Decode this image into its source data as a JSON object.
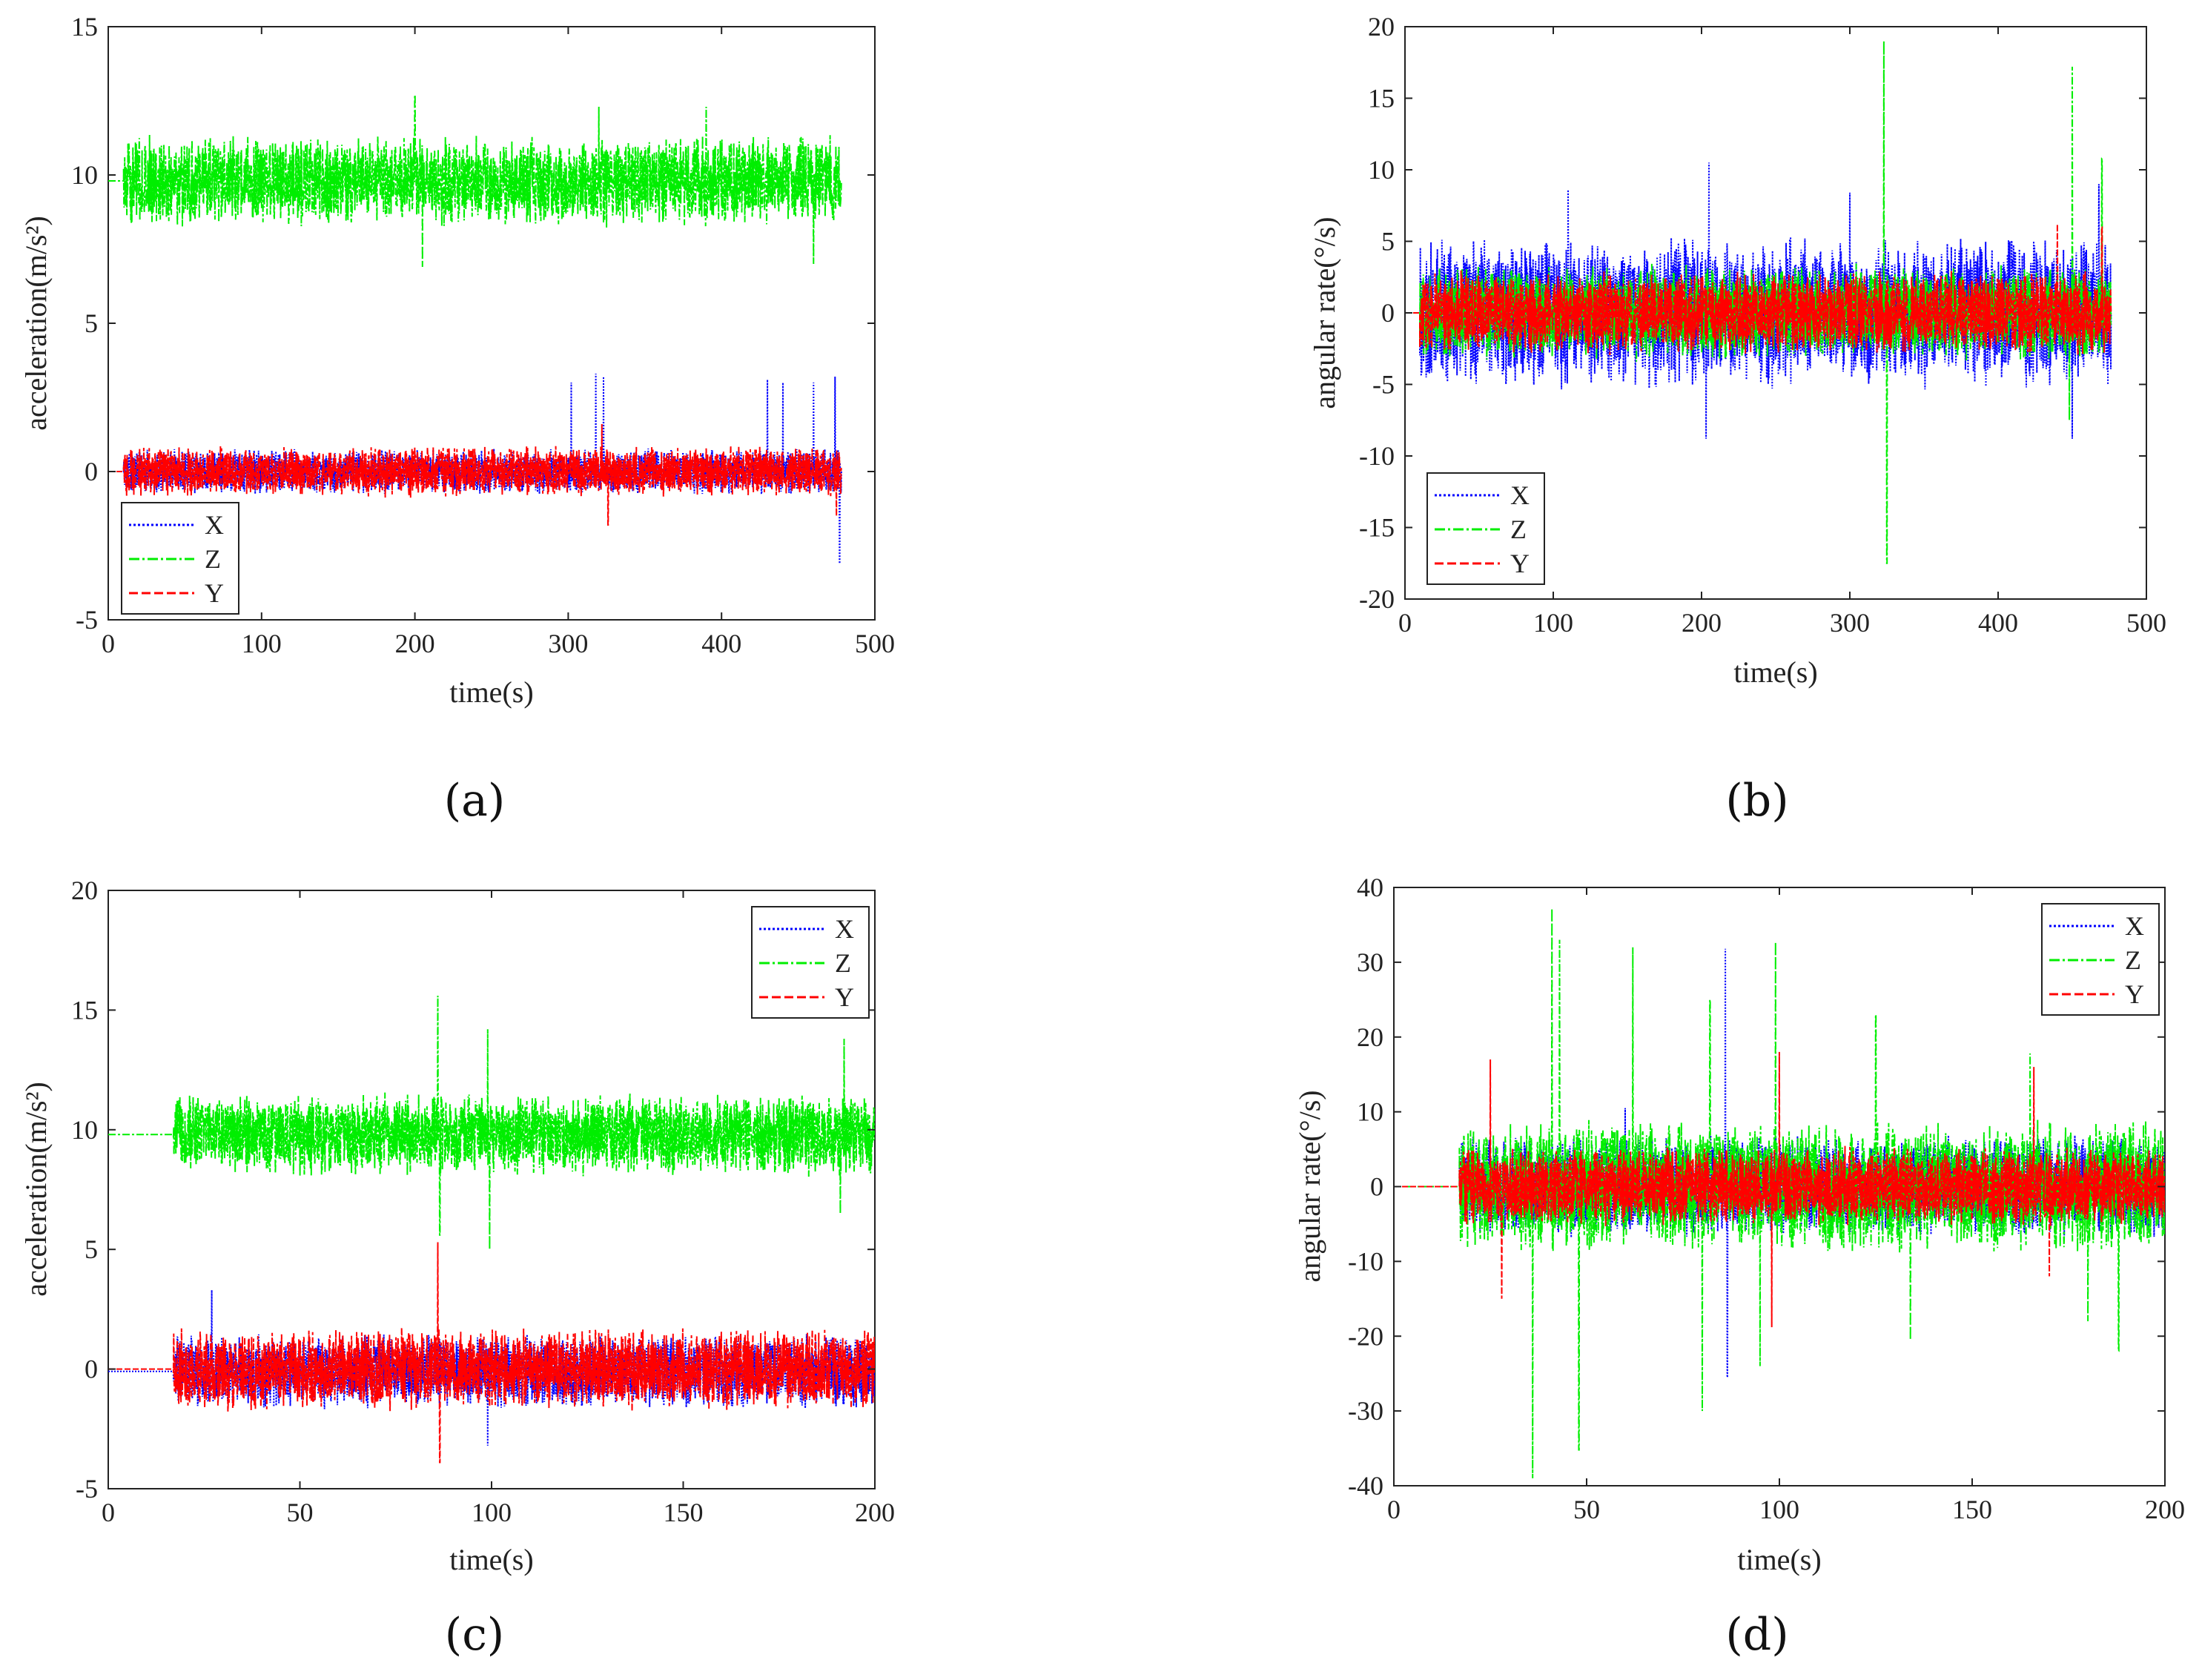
{
  "colors": {
    "X": "#0000ff",
    "Z": "#00ee00",
    "Y": "#ff0000",
    "axis": "#222222"
  },
  "chart_data": [
    {
      "id": "a",
      "panel_label": "(a)",
      "type": "line",
      "title": "",
      "xlabel": "time(s)",
      "ylabel": "acceleration(m/s²)",
      "xlim": [
        0,
        500
      ],
      "ylim": [
        -5,
        15
      ],
      "xticks": [
        0,
        100,
        200,
        300,
        400,
        500
      ],
      "yticks": [
        -5,
        0,
        5,
        10,
        15
      ],
      "legend_position": "bottom-left",
      "signal_start": 10,
      "signal_end": 478,
      "series": [
        {
          "name": "X",
          "style": "dotted",
          "baseline": 0,
          "amplitude": 0.8,
          "spikes": [
            [
              302,
              3.0
            ],
            [
              318,
              3.3
            ],
            [
              323,
              3.2
            ],
            [
              430,
              3.1
            ],
            [
              440,
              3.0
            ],
            [
              460,
              3.0
            ],
            [
              474,
              3.2
            ],
            [
              477,
              -3.1
            ]
          ]
        },
        {
          "name": "Z",
          "style": "dashdot",
          "baseline": 9.8,
          "amplitude": 1.6,
          "spikes": [
            [
              200,
              12.7
            ],
            [
              205,
              6.9
            ],
            [
              320,
              12.3
            ],
            [
              390,
              12.3
            ],
            [
              460,
              7.0
            ]
          ]
        },
        {
          "name": "Y",
          "style": "dashed",
          "baseline": 0,
          "amplitude": 0.9,
          "spikes": [
            [
              322,
              1.6
            ],
            [
              326,
              -1.8
            ],
            [
              475,
              -1.5
            ]
          ]
        }
      ]
    },
    {
      "id": "b",
      "panel_label": "(b)",
      "type": "line",
      "title": "",
      "xlabel": "time(s)",
      "ylabel": "angular rate(°/s)",
      "xlim": [
        0,
        500
      ],
      "ylim": [
        -20,
        20
      ],
      "xticks": [
        0,
        100,
        200,
        300,
        400,
        500
      ],
      "yticks": [
        -20,
        -15,
        -10,
        -5,
        0,
        5,
        10,
        15,
        20
      ],
      "legend_position": "bottom-left",
      "signal_start": 10,
      "signal_end": 476,
      "series": [
        {
          "name": "X",
          "style": "dotted",
          "baseline": 0,
          "amplitude": 5.5,
          "spikes": [
            [
              110,
              8.6
            ],
            [
              203,
              -8.8
            ],
            [
              205,
              10.5
            ],
            [
              300,
              8.4
            ],
            [
              450,
              -8.8
            ],
            [
              468,
              9.0
            ]
          ]
        },
        {
          "name": "Z",
          "style": "dashdot",
          "baseline": 0,
          "amplitude": 3.5,
          "spikes": [
            [
              323,
              19.0
            ],
            [
              325,
              -17.5
            ],
            [
              450,
              17.2
            ],
            [
              448,
              -7.5
            ],
            [
              470,
              10.8
            ]
          ]
        },
        {
          "name": "Y",
          "style": "dashed",
          "baseline": 0,
          "amplitude": 3.0,
          "spikes": [
            [
              440,
              6.2
            ],
            [
              470,
              6.0
            ]
          ]
        }
      ]
    },
    {
      "id": "c",
      "panel_label": "(c)",
      "type": "line",
      "title": "",
      "xlabel": "time(s)",
      "ylabel": "acceleration(m/s²)",
      "xlim": [
        0,
        200
      ],
      "ylim": [
        -5,
        20
      ],
      "xticks": [
        0,
        50,
        100,
        150,
        200
      ],
      "yticks": [
        -5,
        0,
        5,
        10,
        15,
        20
      ],
      "legend_position": "top-right",
      "signal_start": 17,
      "signal_end": 200,
      "series": [
        {
          "name": "X",
          "style": "dotted",
          "baseline": -0.1,
          "amplitude": 1.6,
          "spikes": [
            [
              27,
              3.3
            ],
            [
              99,
              -3.2
            ]
          ]
        },
        {
          "name": "Z",
          "style": "dashdot",
          "baseline": 9.8,
          "amplitude": 1.8,
          "spikes": [
            [
              86,
              15.6
            ],
            [
              86.5,
              5.6
            ],
            [
              99,
              14.2
            ],
            [
              99.5,
              5.0
            ],
            [
              192,
              13.8
            ],
            [
              191,
              6.5
            ]
          ]
        },
        {
          "name": "Y",
          "style": "dashed",
          "baseline": 0,
          "amplitude": 1.8,
          "spikes": [
            [
              86,
              5.3
            ],
            [
              86.5,
              -3.9
            ]
          ]
        }
      ]
    },
    {
      "id": "d",
      "panel_label": "(d)",
      "type": "line",
      "title": "",
      "xlabel": "time(s)",
      "ylabel": "angular rate(°/s)",
      "xlim": [
        0,
        200
      ],
      "ylim": [
        -40,
        40
      ],
      "xticks": [
        0,
        50,
        100,
        150,
        200
      ],
      "yticks": [
        -40,
        -30,
        -20,
        -10,
        0,
        10,
        20,
        30,
        40
      ],
      "legend_position": "top-right",
      "signal_start": 17,
      "signal_end": 200,
      "series": [
        {
          "name": "X",
          "style": "dotted",
          "baseline": 0,
          "amplitude": 7.0,
          "spikes": [
            [
              86,
              31.8
            ],
            [
              86.5,
              -25.5
            ],
            [
              60,
              10.5
            ]
          ]
        },
        {
          "name": "Z",
          "style": "dashdot",
          "baseline": 0,
          "amplitude": 9.0,
          "spikes": [
            [
              36,
              -39.0
            ],
            [
              41,
              37.2
            ],
            [
              43,
              33.0
            ],
            [
              48,
              -35.2
            ],
            [
              62,
              32.0
            ],
            [
              82,
              25.0
            ],
            [
              80,
              -30.0
            ],
            [
              99,
              32.7
            ],
            [
              95,
              -24.0
            ],
            [
              125,
              23.0
            ],
            [
              134,
              -20.5
            ],
            [
              165,
              17.8
            ],
            [
              180,
              -18.0
            ],
            [
              188,
              -22.0
            ]
          ]
        },
        {
          "name": "Y",
          "style": "dashed",
          "baseline": 0,
          "amplitude": 5.5,
          "spikes": [
            [
              25,
              17.0
            ],
            [
              28,
              -15.0
            ],
            [
              98,
              -18.8
            ],
            [
              100,
              18.0
            ],
            [
              166,
              16.0
            ],
            [
              170,
              -12.0
            ]
          ]
        }
      ]
    }
  ]
}
